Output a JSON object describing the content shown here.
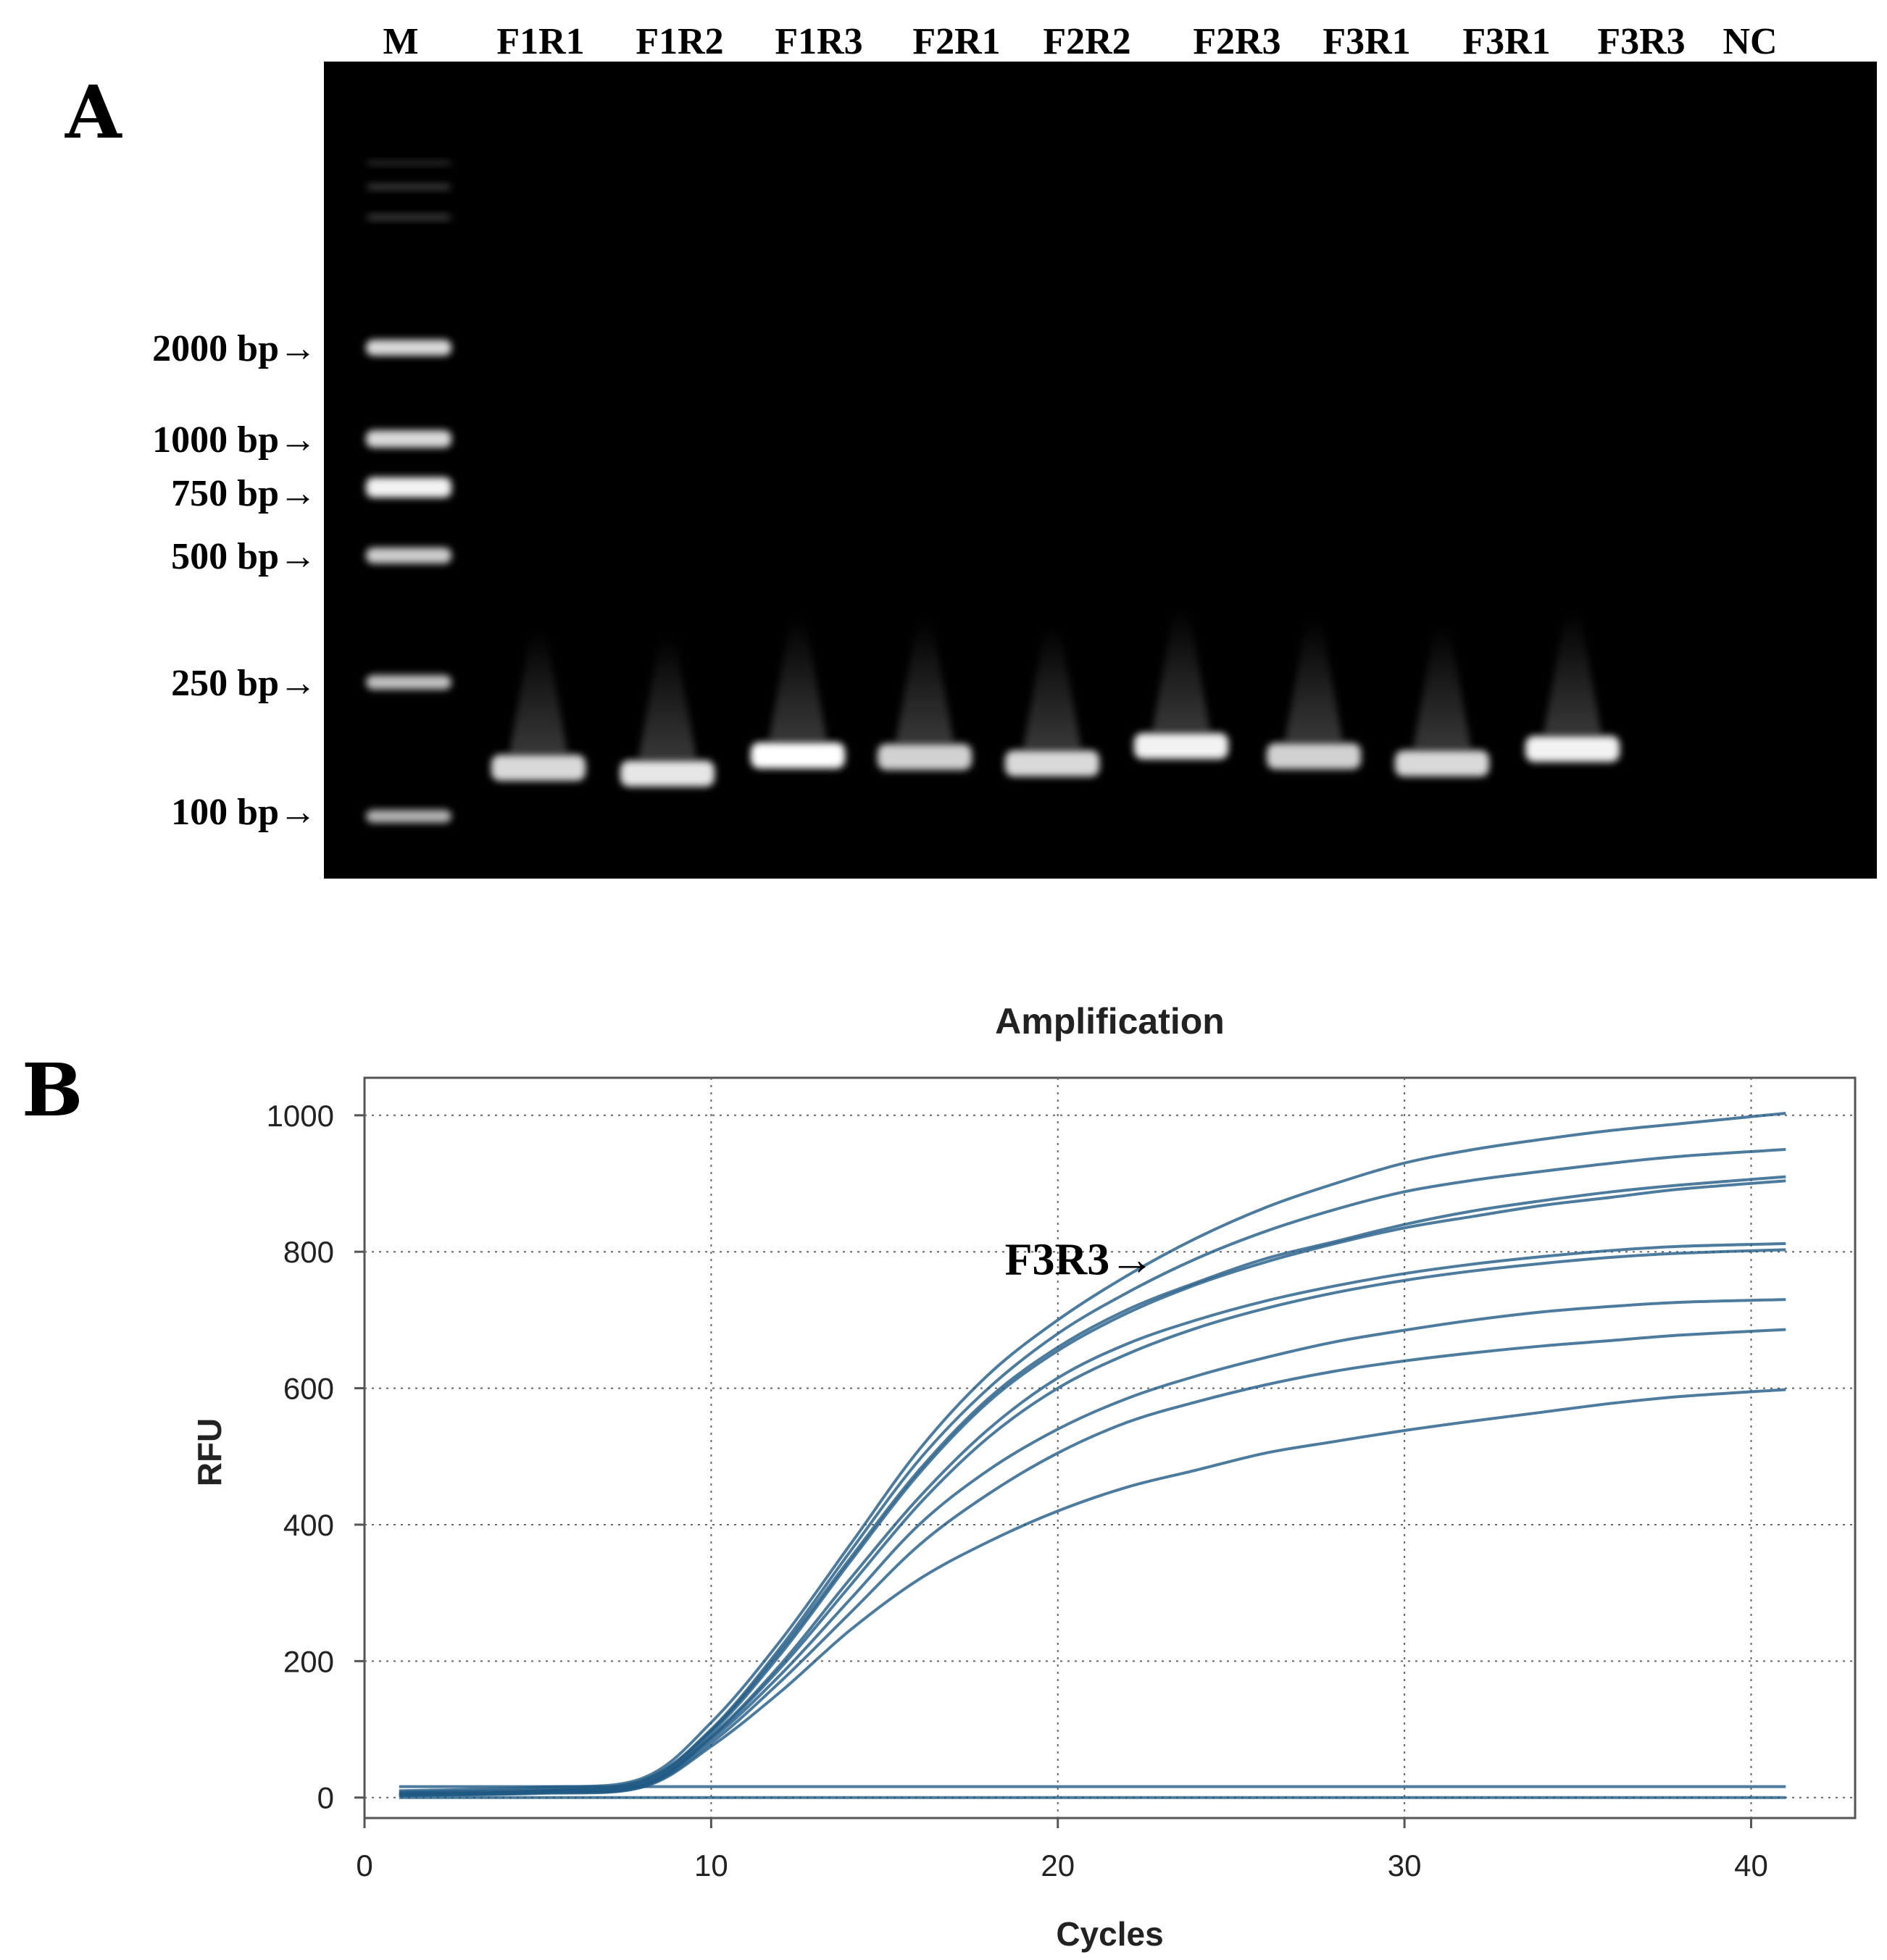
{
  "panel_a": {
    "letter": "A",
    "lane_labels": [
      "M",
      "F1R1",
      "F1R2",
      "F1R3",
      "F2R1",
      "F2R2",
      "F2R3",
      "F3R1",
      "F3R1",
      "F3R3",
      "NC"
    ],
    "marker_labels": [
      "2000 bp→",
      "1000 bp→",
      "750 bp→",
      "500 bp→",
      "250 bp→",
      "100 bp→"
    ],
    "gel_color": "#000000",
    "band_color": "#ffffff"
  },
  "panel_b": {
    "letter": "B",
    "annotation": "F3R3→",
    "line_color": "#1f5a85",
    "grid_color": "#666666"
  },
  "chart_data": {
    "type": "line",
    "title": "Amplification",
    "xlabel": "Cycles",
    "ylabel": "RFU",
    "xlim": [
      0,
      43
    ],
    "ylim": [
      -30,
      1055
    ],
    "xticks": [
      0,
      10,
      20,
      30,
      40
    ],
    "yticks": [
      0,
      200,
      400,
      600,
      800,
      1000
    ],
    "grid": true,
    "legend": "none",
    "annotations": [
      {
        "text": "F3R3→",
        "x": 23,
        "y": 790
      }
    ],
    "series": [
      {
        "x": [
          1,
          5,
          8,
          10,
          12,
          14,
          16,
          18,
          20,
          22,
          24,
          26,
          28,
          30,
          32,
          34,
          36,
          38,
          41
        ],
        "values": [
          10,
          15,
          28,
          110,
          230,
          370,
          510,
          620,
          700,
          765,
          820,
          865,
          900,
          930,
          950,
          965,
          978,
          988,
          1003
        ]
      },
      {
        "x": [
          1,
          5,
          8,
          10,
          12,
          14,
          16,
          18,
          20,
          22,
          24,
          26,
          28,
          30,
          32,
          34,
          36,
          38,
          41
        ],
        "values": [
          8,
          12,
          25,
          100,
          220,
          360,
          495,
          600,
          680,
          740,
          790,
          830,
          862,
          888,
          905,
          918,
          930,
          940,
          950
        ]
      },
      {
        "x": [
          1,
          5,
          8,
          10,
          12,
          14,
          16,
          18,
          20,
          22,
          24,
          26,
          28,
          30,
          32,
          34,
          36,
          38,
          41
        ],
        "values": [
          6,
          10,
          24,
          98,
          215,
          350,
          480,
          585,
          660,
          715,
          755,
          790,
          815,
          840,
          860,
          875,
          888,
          898,
          910
        ]
      },
      {
        "x": [
          1,
          5,
          8,
          10,
          12,
          14,
          16,
          18,
          20,
          22,
          24,
          26,
          28,
          30,
          32,
          34,
          36,
          38,
          41
        ],
        "values": [
          5,
          10,
          22,
          95,
          210,
          345,
          475,
          580,
          655,
          710,
          752,
          785,
          812,
          835,
          852,
          868,
          880,
          892,
          904
        ]
      },
      {
        "x": [
          1,
          5,
          8,
          10,
          12,
          14,
          16,
          18,
          20,
          22,
          24,
          26,
          28,
          30,
          32,
          34,
          36,
          38,
          41
        ],
        "values": [
          5,
          9,
          20,
          90,
          195,
          320,
          440,
          540,
          615,
          665,
          700,
          728,
          750,
          768,
          782,
          793,
          802,
          808,
          812
        ]
      },
      {
        "x": [
          1,
          5,
          8,
          10,
          12,
          14,
          16,
          18,
          20,
          22,
          24,
          26,
          28,
          30,
          32,
          34,
          36,
          38,
          41
        ],
        "values": [
          4,
          8,
          18,
          88,
          190,
          310,
          430,
          528,
          600,
          650,
          688,
          717,
          740,
          758,
          772,
          783,
          792,
          798,
          803
        ]
      },
      {
        "x": [
          1,
          5,
          8,
          10,
          12,
          14,
          16,
          18,
          20,
          22,
          24,
          26,
          28,
          30,
          32,
          34,
          36,
          38,
          41
        ],
        "values": [
          4,
          8,
          18,
          85,
          180,
          290,
          400,
          480,
          540,
          585,
          618,
          645,
          668,
          685,
          700,
          712,
          720,
          726,
          730
        ]
      },
      {
        "x": [
          1,
          5,
          8,
          10,
          12,
          14,
          16,
          18,
          20,
          22,
          24,
          26,
          28,
          30,
          32,
          34,
          36,
          38,
          41
        ],
        "values": [
          3,
          7,
          16,
          80,
          170,
          270,
          370,
          445,
          505,
          550,
          580,
          605,
          625,
          640,
          652,
          662,
          670,
          678,
          686
        ]
      },
      {
        "x": [
          1,
          5,
          8,
          10,
          12,
          14,
          16,
          18,
          20,
          22,
          24,
          26,
          28,
          30,
          32,
          34,
          36,
          38,
          41
        ],
        "values": [
          3,
          6,
          15,
          75,
          155,
          245,
          320,
          375,
          420,
          455,
          480,
          505,
          522,
          538,
          552,
          565,
          578,
          588,
          598
        ]
      },
      {
        "x": [
          1,
          41
        ],
        "values": [
          16,
          16
        ]
      },
      {
        "x": [
          1,
          41
        ],
        "values": [
          0,
          0
        ]
      }
    ]
  }
}
